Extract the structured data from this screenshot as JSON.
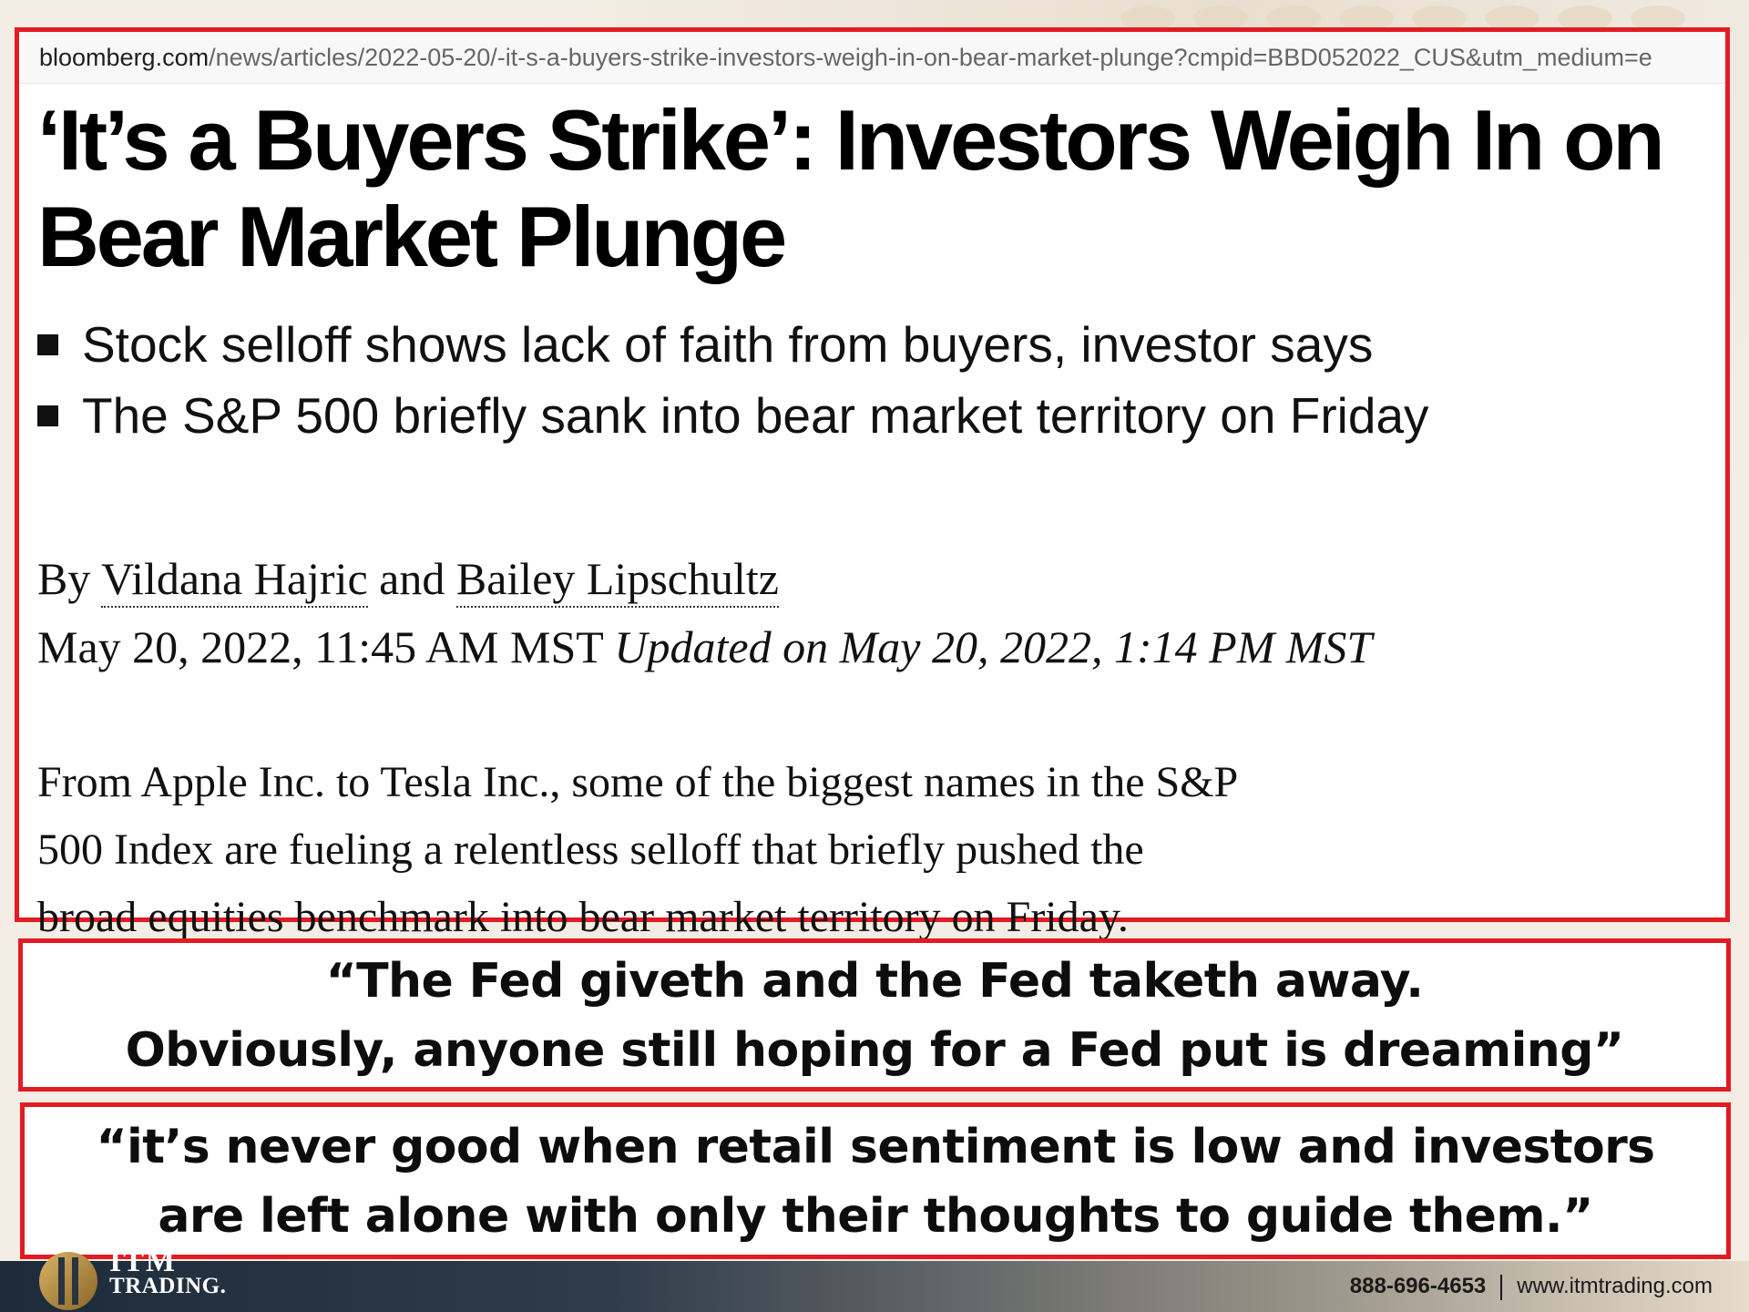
{
  "url": {
    "domain": "bloomberg.com",
    "path": "/news/articles/2022-05-20/-it-s-a-buyers-strike-investors-weigh-in-on-bear-market-plunge?cmpid=BBD052022_CUS&utm_medium=e"
  },
  "article": {
    "headline": "‘It’s a Buyers Strike’: Investors Weigh In on Bear Market Plunge",
    "bullets": [
      "Stock selloff shows lack of faith from buyers, investor says",
      "The S&P 500 briefly sank into bear market territory on Friday"
    ],
    "byline": {
      "prefix": "By",
      "author1": "Vildana Hajric",
      "joiner": "and",
      "author2": "Bailey Lipschultz"
    },
    "published": "May 20, 2022, 11:45 AM MST",
    "updated": "Updated on May 20, 2022, 1:14 PM MST",
    "paragraph": [
      "From Apple Inc. to Tesla Inc., some of the biggest names in the S&P",
      "500 Index are fueling a relentless selloff that briefly pushed the",
      "broad equities benchmark into bear market territory on Friday."
    ]
  },
  "quotes": [
    {
      "line1": "“The Fed giveth and the Fed taketh away.",
      "line2": "Obviously, anyone still hoping for a Fed put is dreaming”"
    },
    {
      "line1": "“it’s never good when retail sentiment is low and investors",
      "line2": "are left alone with only their thoughts to guide them.”"
    }
  ],
  "footer": {
    "logo_top": "ITM",
    "logo_text": "TRADING.",
    "phone": "888-696-4653",
    "website": "www.itmtrading.com"
  },
  "colors": {
    "border_red": "#e31b23",
    "footer_dark": "#1d2b3a",
    "footer_light": "#e7dccb",
    "logo_gold": "#b68a3a"
  },
  "icons": [
    "itm-logo-icon"
  ]
}
